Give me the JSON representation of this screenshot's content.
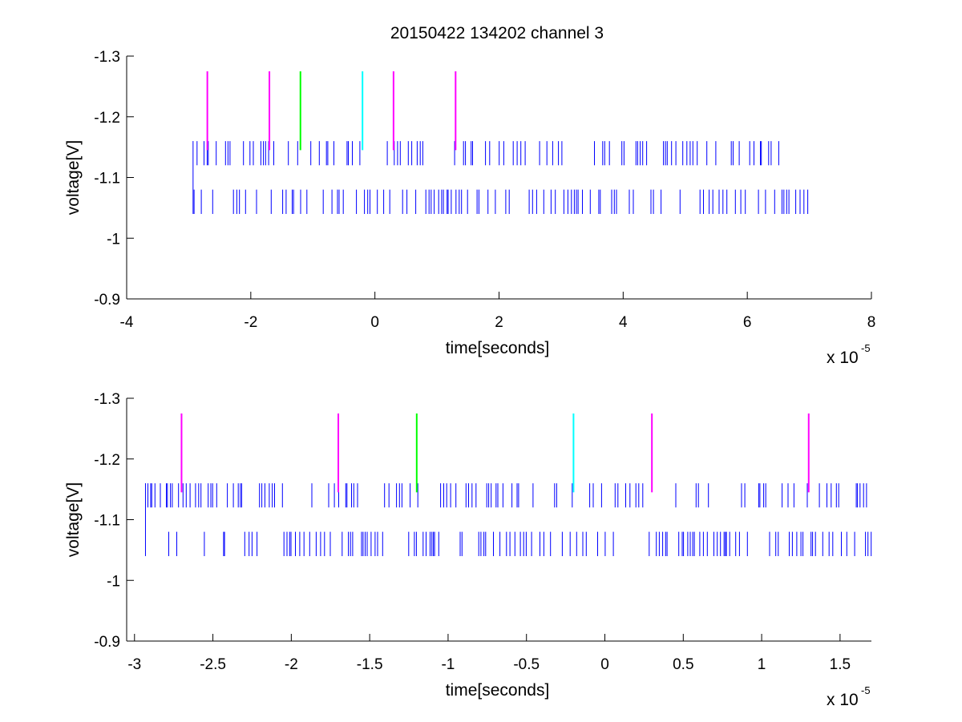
{
  "figure_title": "20150422 134202 channel 3",
  "chart_data": [
    {
      "type": "line",
      "title": "20150422 134202 channel 3",
      "xlabel": "time[seconds]",
      "ylabel": "voltage[V]",
      "x_exponent_label": {
        "base": "x 10",
        "exponent": "-5"
      },
      "xlim": [
        -4e-05,
        8e-05
      ],
      "ylim": [
        -1.3,
        -0.9
      ],
      "y_reversed": true,
      "x_ticks": [
        -4,
        -2,
        0,
        2,
        4,
        6,
        8
      ],
      "x_tick_labels": [
        "-4",
        "-2",
        "0",
        "2",
        "4",
        "6",
        "8"
      ],
      "y_ticks": [
        -0.9,
        -1.0,
        -1.1,
        -1.2,
        -1.3
      ],
      "y_tick_labels": [
        "-0.9",
        "-1",
        "-1.1",
        "-1.2",
        "-1.3"
      ],
      "grid": false,
      "legend": "none",
      "signal": {
        "color": "#0000ff",
        "x_range": [
          -2.93e-05,
          7.03e-05
        ],
        "band": [
          -1.12,
          -1.08
        ],
        "noise_levels": [
          -1.04,
          -1.16
        ]
      },
      "markers": [
        {
          "x": -2.7e-05,
          "y_range": [
            -1.145,
            -1.275
          ],
          "color": "#ff00ff"
        },
        {
          "x": -1.7e-05,
          "y_range": [
            -1.145,
            -1.275
          ],
          "color": "#ff00ff"
        },
        {
          "x": -1.2e-05,
          "y_range": [
            -1.145,
            -1.275
          ],
          "color": "#00ff00"
        },
        {
          "x": -2e-06,
          "y_range": [
            -1.145,
            -1.275
          ],
          "color": "#00ffff"
        },
        {
          "x": 3e-06,
          "y_range": [
            -1.145,
            -1.275
          ],
          "color": "#ff00ff"
        },
        {
          "x": 1.3e-05,
          "y_range": [
            -1.145,
            -1.275
          ],
          "color": "#ff00ff"
        }
      ]
    },
    {
      "type": "line",
      "title": "",
      "xlabel": "time[seconds]",
      "ylabel": "voltage[V]",
      "x_exponent_label": {
        "base": "x 10",
        "exponent": "-5"
      },
      "xlim": [
        -3.05e-05,
        1.7e-05
      ],
      "ylim": [
        -1.3,
        -0.9
      ],
      "y_reversed": true,
      "x_ticks": [
        -3,
        -2.5,
        -2,
        -1.5,
        -1,
        -0.5,
        0,
        0.5,
        1,
        1.5
      ],
      "x_tick_labels": [
        "-3",
        "-2.5",
        "-2",
        "-1.5",
        "-1",
        "-0.5",
        "0",
        "0.5",
        "1",
        "1.5"
      ],
      "y_ticks": [
        -0.9,
        -1.0,
        -1.1,
        -1.2,
        -1.3
      ],
      "y_tick_labels": [
        "-0.9",
        "-1",
        "-1.1",
        "-1.2",
        "-1.3"
      ],
      "grid": false,
      "legend": "none",
      "signal": {
        "color": "#0000ff",
        "x_range": [
          -2.93e-05,
          1.7e-05
        ],
        "band": [
          -1.12,
          -1.08
        ],
        "noise_levels": [
          -1.04,
          -1.16
        ]
      },
      "markers": [
        {
          "x": -2.7e-05,
          "y_range": [
            -1.145,
            -1.275
          ],
          "color": "#ff00ff"
        },
        {
          "x": -1.7e-05,
          "y_range": [
            -1.145,
            -1.275
          ],
          "color": "#ff00ff"
        },
        {
          "x": -1.2e-05,
          "y_range": [
            -1.145,
            -1.275
          ],
          "color": "#00ff00"
        },
        {
          "x": -2e-06,
          "y_range": [
            -1.145,
            -1.275
          ],
          "color": "#00ffff"
        },
        {
          "x": 3e-06,
          "y_range": [
            -1.145,
            -1.275
          ],
          "color": "#ff00ff"
        },
        {
          "x": 1.3e-05,
          "y_range": [
            -1.145,
            -1.275
          ],
          "color": "#ff00ff"
        }
      ]
    }
  ]
}
